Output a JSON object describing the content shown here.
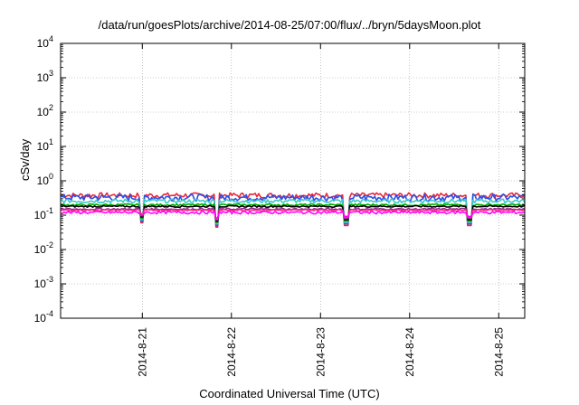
{
  "chart_data": {
    "type": "line",
    "title": "/data/run/goesPlots/archive/2014-08-25/07:00/flux/../bryn/5daysMoon.plot",
    "xlabel": "Coordinated Universal Time (UTC)",
    "ylabel": "cSv/day",
    "yscale": "log",
    "ylim": [
      0.0001,
      10000
    ],
    "xlim": [
      "2014-08-20T02:00",
      "2014-08-25T07:00"
    ],
    "x_ticks": [
      "2014-8-21",
      "2014-8-22",
      "2014-8-23",
      "2014-8-24",
      "2014-8-25"
    ],
    "y_ticks": [
      {
        "base": "10",
        "exp": "4"
      },
      {
        "base": "10",
        "exp": "3"
      },
      {
        "base": "10",
        "exp": "2"
      },
      {
        "base": "10",
        "exp": "1"
      },
      {
        "base": "10",
        "exp": "0"
      },
      {
        "base": "10",
        "exp": "-1"
      },
      {
        "base": "10",
        "exp": "-2"
      },
      {
        "base": "10",
        "exp": "-3"
      },
      {
        "base": "10",
        "exp": "-4"
      }
    ],
    "grid": true,
    "series": [
      {
        "color": "#e8283a",
        "level": 0.38,
        "amp": 0.16
      },
      {
        "color": "#2a4fe8",
        "level": 0.33,
        "amp": 0.2
      },
      {
        "color": "#3cc8c8",
        "level": 0.26,
        "amp": 0.12
      },
      {
        "color": "#00aa00",
        "level": 0.2,
        "amp": 0.06
      },
      {
        "color": "#000000",
        "level": 0.18,
        "amp": 0.05
      },
      {
        "color": "#8a2a8a",
        "level": 0.15,
        "amp": 0.05
      },
      {
        "color": "#ff2a8a",
        "level": 0.14,
        "amp": 0.05
      },
      {
        "color": "#ff00ff",
        "level": 0.12,
        "amp": 0.08
      }
    ],
    "dips": [
      {
        "time": "2014-08-21T00:00",
        "value": 0.06
      },
      {
        "time": "2014-08-21T20:00",
        "value": 0.045
      },
      {
        "time": "2014-08-23T07:00",
        "value": 0.05
      },
      {
        "time": "2014-08-24T16:00",
        "value": 0.05
      }
    ]
  }
}
